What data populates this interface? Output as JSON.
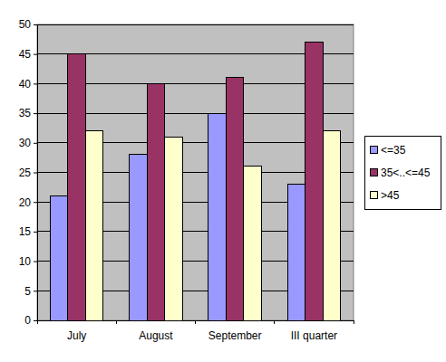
{
  "chart_data": {
    "type": "bar",
    "categories": [
      "July",
      "August",
      "September",
      "III quarter"
    ],
    "series": [
      {
        "name": "<=35",
        "color": "#9999ff",
        "values": [
          21,
          28,
          35,
          23
        ]
      },
      {
        "name": "35<..<=45",
        "color": "#993366",
        "values": [
          45,
          40,
          41,
          47
        ]
      },
      {
        "name": ">45",
        "color": "#ffffcc",
        "values": [
          32,
          31,
          26,
          32
        ]
      }
    ],
    "ylim": [
      0,
      50
    ],
    "yticks": [
      0,
      5,
      10,
      15,
      20,
      25,
      30,
      35,
      40,
      45,
      50
    ],
    "grid": true,
    "legend": "right"
  }
}
